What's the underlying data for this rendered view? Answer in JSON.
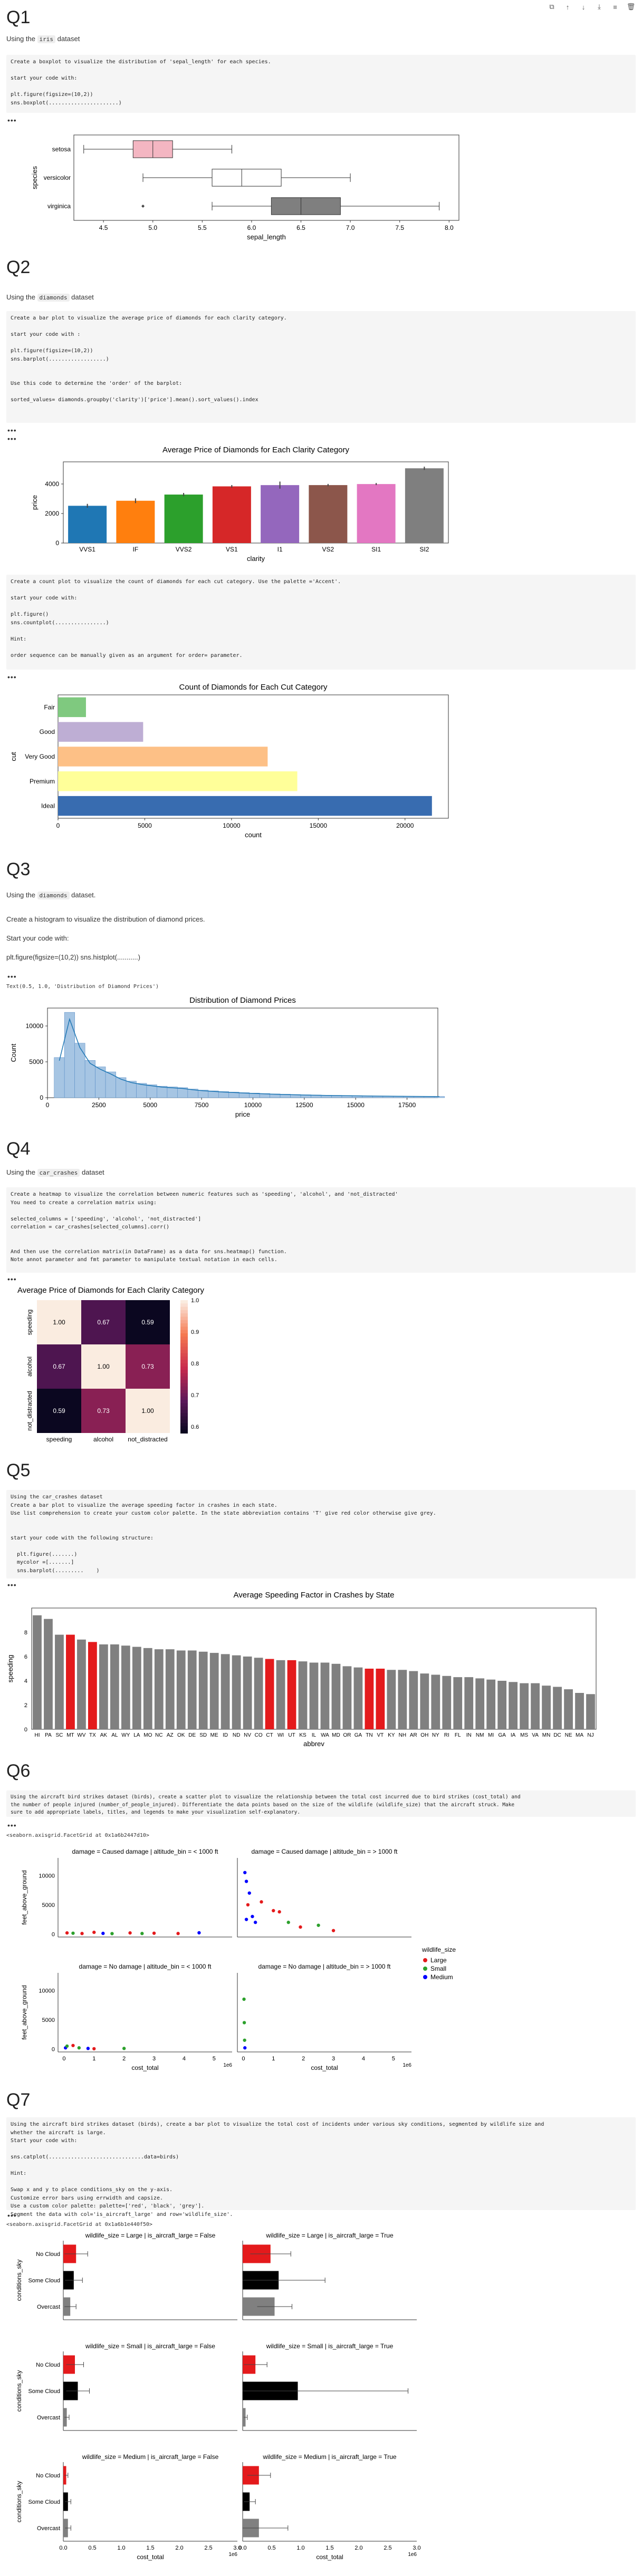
{
  "toolbar": [
    "copy-icon",
    "arrow-up-icon",
    "arrow-down-icon",
    "download-icon",
    "align-icon",
    "delete-icon"
  ],
  "q1": {
    "title": "Q1",
    "intro_pre": "Using the ",
    "intro_code": "iris",
    "intro_post": " dataset",
    "cell": "Create a boxplot to visualize the distribution of 'sepal_length' for each species.\n\nstart your code with:\n\nplt.figure(figsize=(10,2))\nsns.boxplot(......................)"
  },
  "q2": {
    "title": "Q2",
    "intro_pre": "Using the ",
    "intro_code": "diamonds",
    "intro_post": " dataset",
    "cell": "Create a bar plot to visualize the average price of diamonds for each clarity category.\n\nstart your code with :\n\nplt.figure(figsize=(10,2))\nsns.barplot(..................)\n\n\nUse this code to determine the 'order' of the barplot:\n\nsorted_values= diamonds.groupby('clarity')['price'].mean().sort_values().index",
    "cell2": "Create a count plot to visualize the count of diamonds for each cut category. Use the palette ='Accent'.\n\nstart your code with:\n\nplt.figure()\nsns.countplot(................)\n\nHint:\n\norder sequence can be manually given as an argument for order= parameter."
  },
  "q3": {
    "title": "Q3",
    "intro_pre": "Using the ",
    "intro_code": "diamonds",
    "intro_post": " dataset.",
    "line1": "Create a histogram to visualize the distribution of diamond prices.",
    "line2": "Start your code with:",
    "line3": "plt.figure(figsize=(10,2)) sns.histplot(...........)",
    "out": "Text(0.5, 1.0, 'Distribution of Diamond Prices')"
  },
  "q4": {
    "title": "Q4",
    "intro_pre": "Using the ",
    "intro_code": "car_crashes",
    "intro_post": " dataset",
    "cell": "Create a heatmap to visualize the correlation between numeric features such as 'speeding', 'alcohol', and 'not_distracted'\nYou need to create a correlation matrix using:\n\nselected_columns = ['speeding', 'alcohol', 'not_distracted']\ncorrelation = car_crashes[selected_columns].corr()\n\n\nAnd then use the correlation matrix(in DataFrame) as a data for sns.heatmap() function.\nNote annot parameter and fmt parameter to manipulate textual notation in each cells."
  },
  "q5": {
    "title": "Q5",
    "cell": "Using the car_crashes dataset\nCreate a bar plot to visualize the average speeding factor in crashes in each state.\nUse list comprehension to create your custom color palette. In the state abbreviation contains 'T' give red color otherwise give grey.\n\n\nstart your code with the following structure:\n\n  plt.figure(.......)\n  mycolor =[.......]\n  sns.barplot(.........    )"
  },
  "q6": {
    "title": "Q6",
    "cell": "Using the aircraft bird strikes dataset (birds), create a scatter plot to visualize the relationship between the total cost incurred due to bird strikes (cost_total) and\nthe number of people injured (number_of_people_injured). Differentiate the data points based on the size of the wildlife (wildlife_size) that the aircraft struck. Make\nsure to add appropriate labels, titles, and legends to make your visualization self-explanatory.",
    "out": "<seaborn.axisgrid.FacetGrid at 0x1a6b2447d10>"
  },
  "q7": {
    "title": "Q7",
    "cell": "Using the aircraft bird strikes dataset (birds), create a bar plot to visualize the total cost of incidents under various sky conditions, segmented by wildlife size and\nwhether the aircraft is large.\nStart your code with:\n\nsns.catplot(..............................data=birds)\n\nHint:\n\nSwap x and y to place conditions_sky on the y-axis.\nCustomize error bars using errwidth and capsize.\nUse a custom color palette: palette=['red', 'black', 'grey'].\nSegment the data with col='is_aircraft_large' and row='wildlife_size'.",
    "out": "<seaborn.axisgrid.FacetGrid at 0x1a6b1e440f50>"
  },
  "chart_data": [
    {
      "type": "box",
      "id": "iris",
      "categories": [
        "setosa",
        "versicolor",
        "virginica"
      ],
      "ylabel": "species",
      "xlabel": "sepal_length",
      "xlim": [
        4.2,
        8.1
      ],
      "xticks": [
        4.5,
        5.0,
        5.5,
        6.0,
        6.5,
        7.0,
        7.5,
        8.0
      ],
      "boxes": [
        {
          "min": 4.3,
          "q1": 4.8,
          "med": 5.0,
          "q3": 5.2,
          "max": 5.8,
          "out": [],
          "color": "#f4b6c2"
        },
        {
          "min": 4.9,
          "q1": 5.6,
          "med": 5.9,
          "q3": 6.3,
          "max": 7.0,
          "out": [],
          "color": "#ffffff"
        },
        {
          "min": 5.6,
          "q1": 6.2,
          "med": 6.5,
          "q3": 6.9,
          "max": 7.9,
          "out": [
            4.9
          ],
          "color": "#7f7f7f"
        }
      ]
    },
    {
      "type": "bar",
      "id": "clarity",
      "title": "Average Price of Diamonds for Each Clarity Category",
      "xlabel": "clarity",
      "ylabel": "price",
      "ylim": [
        0,
        5500
      ],
      "yticks": [
        0,
        2000,
        4000
      ],
      "categories": [
        "VVS1",
        "IF",
        "VVS2",
        "VS1",
        "I1",
        "VS2",
        "SI1",
        "SI2"
      ],
      "values": [
        2523,
        2865,
        3284,
        3839,
        3924,
        3925,
        3996,
        5063
      ],
      "errors": [
        130,
        160,
        110,
        90,
        240,
        80,
        70,
        110
      ],
      "colors": [
        "#1f77b4",
        "#ff7f0e",
        "#2ca02c",
        "#d62728",
        "#9467bd",
        "#8c564b",
        "#e377c2",
        "#7f7f7f"
      ]
    },
    {
      "type": "bar",
      "id": "cut",
      "title": "Count of Diamonds for Each Cut Category",
      "xlabel": "count",
      "ylabel": "cut",
      "xlim": [
        0,
        22500
      ],
      "xticks": [
        0,
        5000,
        10000,
        15000,
        20000
      ],
      "categories": [
        "Fair",
        "Good",
        "Very Good",
        "Premium",
        "Ideal"
      ],
      "values": [
        1610,
        4906,
        12082,
        13791,
        21551
      ],
      "colors": [
        "#7fc97f",
        "#beaed4",
        "#fdc086",
        "#ffff99",
        "#386cb0"
      ]
    },
    {
      "type": "histogram",
      "id": "price",
      "title": "Distribution of Diamond Prices",
      "xlabel": "price",
      "ylabel": "Count",
      "xlim": [
        0,
        19000
      ],
      "ylim": [
        0,
        12500
      ],
      "xticks": [
        0,
        2500,
        5000,
        7500,
        10000,
        12500,
        15000,
        17500
      ],
      "yticks": [
        0,
        5000,
        10000
      ],
      "binwidth": 500,
      "start": 326,
      "values": [
        5600,
        11900,
        7600,
        5200,
        4300,
        3600,
        2800,
        2300,
        2000,
        1800,
        1600,
        1500,
        1400,
        1200,
        1050,
        950,
        850,
        780,
        700,
        640,
        580,
        520,
        480,
        440,
        400,
        370,
        340,
        320,
        300,
        280,
        260,
        240,
        230,
        210,
        200,
        190,
        180,
        170
      ]
    },
    {
      "type": "heatmap",
      "id": "corr",
      "title": "Average Price of Diamonds for Each Clarity Category",
      "labels": [
        "speeding",
        "alcohol",
        "not_distracted"
      ],
      "values": [
        [
          1.0,
          0.67,
          0.59
        ],
        [
          0.67,
          1.0,
          0.73
        ],
        [
          0.59,
          0.73,
          1.0
        ]
      ],
      "colorbar": [
        0.6,
        0.7,
        0.8,
        0.9,
        1.0
      ]
    },
    {
      "type": "bar",
      "id": "states",
      "title": "Average Speeding Factor in Crashes by State",
      "xlabel": "abbrev",
      "ylabel": "speeding",
      "ylim": [
        0,
        10
      ],
      "yticks": [
        0,
        2,
        4,
        6,
        8
      ],
      "categories": [
        "HI",
        "PA",
        "SC",
        "MT",
        "WV",
        "TX",
        "AK",
        "AL",
        "WY",
        "LA",
        "MO",
        "NC",
        "AZ",
        "OK",
        "DE",
        "SD",
        "ME",
        "ID",
        "ND",
        "NV",
        "CO",
        "CT",
        "WI",
        "UT",
        "KS",
        "IL",
        "WA",
        "MD",
        "OR",
        "GA",
        "TN",
        "VT",
        "KY",
        "NH",
        "AR",
        "OH",
        "NY",
        "RI",
        "FL",
        "IN",
        "NM",
        "MI",
        "GA",
        "IA",
        "MS",
        "VA",
        "MN",
        "DC",
        "NE",
        "MA",
        "NJ"
      ],
      "values": [
        9.4,
        9.1,
        7.8,
        7.8,
        7.4,
        7.2,
        7.0,
        7.0,
        6.9,
        6.8,
        6.7,
        6.6,
        6.6,
        6.5,
        6.5,
        6.4,
        6.3,
        6.2,
        6.1,
        6.0,
        5.9,
        5.8,
        5.7,
        5.7,
        5.6,
        5.5,
        5.5,
        5.4,
        5.2,
        5.1,
        5.0,
        5.0,
        4.9,
        4.9,
        4.8,
        4.6,
        4.5,
        4.4,
        4.3,
        4.3,
        4.2,
        4.1,
        4.0,
        3.9,
        3.8,
        3.8,
        3.6,
        3.5,
        3.3,
        3.0,
        2.9
      ],
      "highlight": "T",
      "colors": {
        "match": "#e41a1c",
        "other": "#808080"
      }
    },
    {
      "type": "scatter",
      "id": "birds_scatter",
      "xlabel": "cost_total",
      "ylabel": "feet_above_ground",
      "xexp": "1e6",
      "legend_title": "wildlife_size",
      "legend": [
        {
          "name": "Large",
          "color": "#e41a1c"
        },
        {
          "name": "Small",
          "color": "#2ca02c"
        },
        {
          "name": "Medium",
          "color": "#0000ff"
        }
      ],
      "panels": [
        {
          "title": "damage = Caused damage | altitude_bin = < 1000 ft"
        },
        {
          "title": "damage = Caused damage | altitude_bin = > 1000 ft"
        },
        {
          "title": "damage = No damage | altitude_bin = < 1000 ft"
        },
        {
          "title": "damage = No damage | altitude_bin = > 1000 ft"
        }
      ],
      "xticks": [
        0,
        1,
        2,
        3,
        4,
        5
      ],
      "yticks": [
        0,
        5000,
        10000
      ],
      "xlim": [
        -0.2,
        5.6
      ],
      "ylim": [
        -500,
        13000
      ]
    },
    {
      "type": "bar",
      "id": "birds_bar",
      "xlabel": "cost_total",
      "ylabel": "conditions_sky",
      "xexp": "1e6",
      "categories": [
        "No Cloud",
        "Some Cloud",
        "Overcast"
      ],
      "colors": [
        "#e41a1c",
        "#000000",
        "#808080"
      ],
      "xlim": [
        0,
        3.0
      ],
      "xticks": [
        0.0,
        0.5,
        1.0,
        1.5,
        2.0,
        2.5,
        3.0
      ],
      "panels": [
        {
          "title": "wildlife_size = Large | is_aircraft_large = False",
          "values": [
            0.22,
            0.18,
            0.12
          ],
          "errors": [
            0.2,
            0.15,
            0.1
          ]
        },
        {
          "title": "wildlife_size = Large | is_aircraft_large = True",
          "values": [
            0.48,
            0.62,
            0.55
          ],
          "errors": [
            0.35,
            0.8,
            0.3
          ]
        },
        {
          "title": "wildlife_size = Small | is_aircraft_large = False",
          "values": [
            0.2,
            0.25,
            0.06
          ],
          "errors": [
            0.15,
            0.2,
            0.04
          ]
        },
        {
          "title": "wildlife_size = Small | is_aircraft_large = True",
          "values": [
            0.22,
            0.95,
            0.05
          ],
          "errors": [
            0.2,
            1.9,
            0.03
          ]
        },
        {
          "title": "wildlife_size = Medium | is_aircraft_large = False",
          "values": [
            0.05,
            0.08,
            0.08
          ],
          "errors": [
            0.03,
            0.05,
            0.05
          ]
        },
        {
          "title": "wildlife_size = Medium | is_aircraft_large = True",
          "values": [
            0.28,
            0.12,
            0.28
          ],
          "errors": [
            0.2,
            0.1,
            0.5
          ]
        }
      ]
    }
  ]
}
